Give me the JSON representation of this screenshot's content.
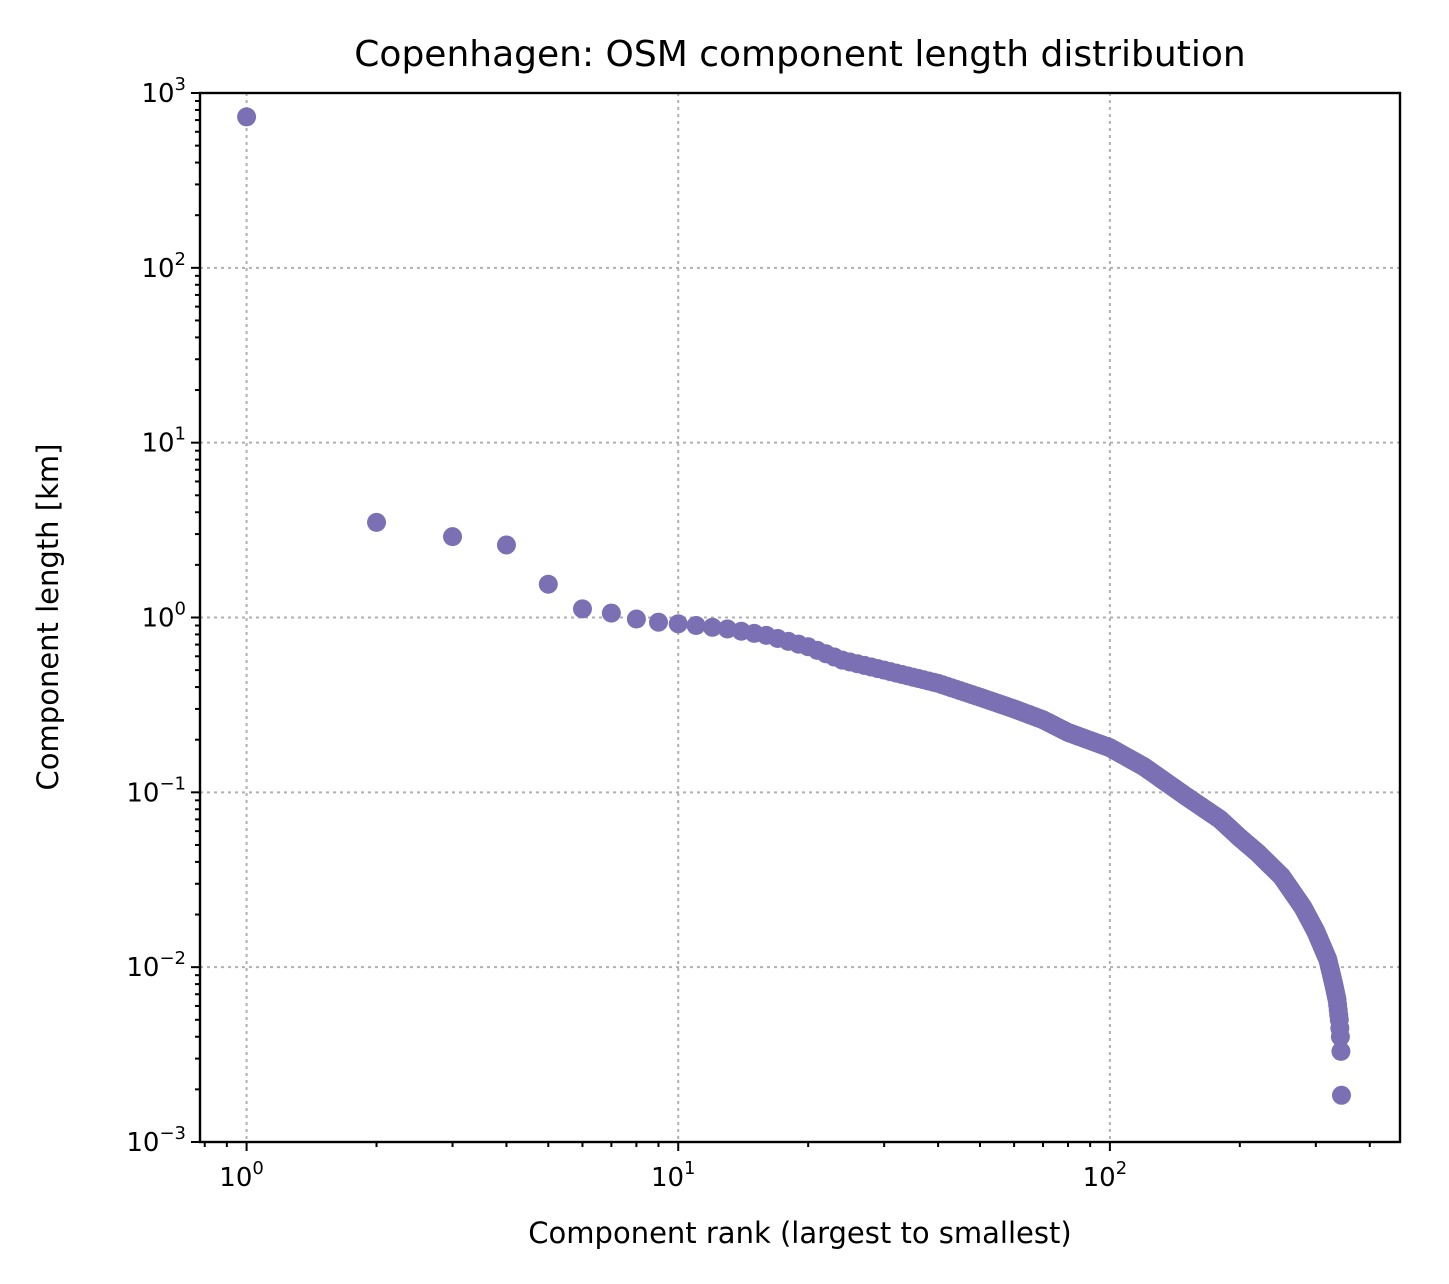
{
  "chart_data": {
    "type": "scatter",
    "title": "Copenhagen: OSM component length distribution",
    "xlabel": "Component rank (largest to smallest)",
    "ylabel": "Component length [km]",
    "xscale": "log",
    "yscale": "log",
    "xlim": [
      0.78,
      470
    ],
    "ylim": [
      0.001,
      1000
    ],
    "grid": true,
    "marker_color": "#7a70b3",
    "x_ticks": [
      {
        "base": "10",
        "exp": "0",
        "value": 1
      },
      {
        "base": "10",
        "exp": "1",
        "value": 10
      },
      {
        "base": "10",
        "exp": "2",
        "value": 100
      }
    ],
    "y_ticks": [
      {
        "base": "10",
        "exp": "−3",
        "value": 0.001
      },
      {
        "base": "10",
        "exp": "−2",
        "value": 0.01
      },
      {
        "base": "10",
        "exp": "−1",
        "value": 0.1
      },
      {
        "base": "10",
        "exp": "0",
        "value": 1
      },
      {
        "base": "10",
        "exp": "1",
        "value": 10
      },
      {
        "base": "10",
        "exp": "2",
        "value": 100
      },
      {
        "base": "10",
        "exp": "3",
        "value": 1000
      }
    ],
    "curve_knots": [
      [
        11,
        0.9
      ],
      [
        13,
        0.86
      ],
      [
        16,
        0.79
      ],
      [
        20,
        0.68
      ],
      [
        24,
        0.57
      ],
      [
        30,
        0.5
      ],
      [
        40,
        0.42
      ],
      [
        50,
        0.35
      ],
      [
        60,
        0.3
      ],
      [
        70,
        0.26
      ],
      [
        80,
        0.22
      ],
      [
        100,
        0.18
      ],
      [
        120,
        0.14
      ],
      [
        150,
        0.095
      ],
      [
        180,
        0.07
      ],
      [
        200,
        0.055
      ],
      [
        220,
        0.045
      ],
      [
        250,
        0.033
      ],
      [
        280,
        0.022
      ],
      [
        300,
        0.016
      ],
      [
        320,
        0.011
      ],
      [
        330,
        0.008
      ],
      [
        336,
        0.0065
      ],
      [
        340,
        0.005
      ],
      [
        342,
        0.004
      ],
      [
        343,
        0.0033
      ]
    ],
    "points": [
      [
        1,
        730
      ],
      [
        2,
        3.5
      ],
      [
        3,
        2.9
      ],
      [
        4,
        2.6
      ],
      [
        5,
        1.55
      ],
      [
        6,
        1.12
      ],
      [
        7,
        1.06
      ],
      [
        8,
        0.98
      ],
      [
        9,
        0.94
      ],
      [
        10,
        0.92
      ],
      [
        343,
        0.0033
      ],
      [
        344,
        0.00185
      ]
    ],
    "n_points": 344
  }
}
